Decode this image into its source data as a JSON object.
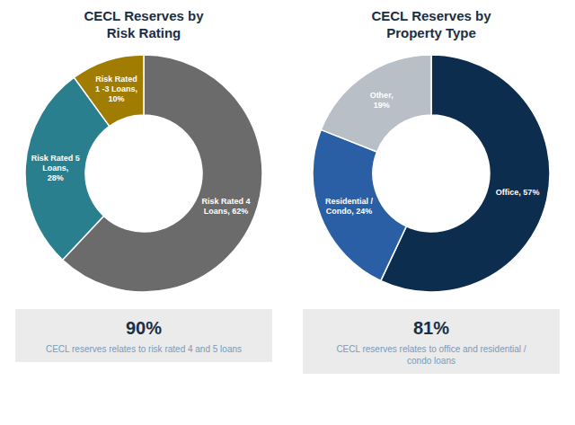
{
  "chart_data": [
    {
      "type": "pie",
      "title": "CECL Reserves by\nRisk Rating",
      "values": [
        62,
        28,
        10
      ],
      "value_labels": [
        "Risk Rated 4\nLoans, 62%",
        "Risk Rated 5\nLoans,\n28%",
        "Risk Rated\n1 -3 Loans,\n10%"
      ],
      "data_labels": true,
      "colors": [
        "#6b6b6b",
        "#2a7f8f",
        "#a07c00"
      ],
      "annotations": [
        "90%",
        "CECL reserves relates to risk rated 4 and 5 loans"
      ]
    },
    {
      "type": "pie",
      "title": "CECL Reserves by\nProperty Type",
      "values": [
        57,
        24,
        19
      ],
      "value_labels": [
        "Office, 57%",
        "Residential /\nCondo, 24%",
        "Other,\n19%"
      ],
      "data_labels": true,
      "colors": [
        "#0d2d4e",
        "#2a5fa5",
        "#b8bfc7"
      ],
      "annotations": [
        "81%",
        "CECL reserves relates to office and residential /\ncondo loans"
      ]
    }
  ]
}
